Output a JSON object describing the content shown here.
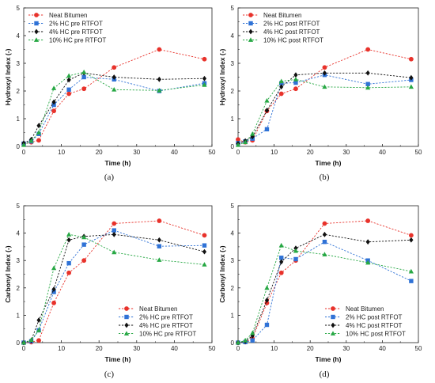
{
  "chart_data": [
    {
      "type": "line",
      "caption": "(a)",
      "xlabel": "Time (h)",
      "ylabel": "Hydroxyl Index (-)",
      "xlim": [
        0,
        50
      ],
      "ylim": [
        0,
        5
      ],
      "xticks": [
        "0",
        "10",
        "20",
        "30",
        "40",
        "50"
      ],
      "yticks": [
        "0",
        "1",
        "2",
        "3",
        "4",
        "5"
      ],
      "legend_position": "top-left",
      "series": [
        {
          "name": "Neat Bitumen",
          "color": "#e8322b",
          "marker": "circle",
          "x": [
            0,
            2,
            4,
            8,
            12,
            16,
            24,
            36,
            48
          ],
          "y": [
            0.08,
            0.15,
            0.22,
            1.28,
            1.9,
            2.08,
            2.85,
            3.5,
            3.15
          ]
        },
        {
          "name": "2% HC pre RTFOT",
          "color": "#2f72d6",
          "marker": "square",
          "x": [
            0,
            2,
            4,
            8,
            12,
            16,
            24,
            36,
            48
          ],
          "y": [
            0.1,
            0.18,
            0.45,
            1.5,
            2.05,
            2.5,
            2.42,
            2.0,
            2.28
          ]
        },
        {
          "name": "4% HC pre RTFOT",
          "color": "#111111",
          "marker": "diamond",
          "x": [
            0,
            2,
            4,
            8,
            12,
            16,
            24,
            36,
            48
          ],
          "y": [
            0.12,
            0.25,
            0.75,
            1.6,
            2.4,
            2.65,
            2.5,
            2.42,
            2.45
          ]
        },
        {
          "name": "10% HC pre RTFOT",
          "color": "#27a844",
          "marker": "triangle",
          "x": [
            0,
            2,
            4,
            8,
            12,
            16,
            24,
            36,
            48
          ],
          "y": [
            0.05,
            0.2,
            0.5,
            2.1,
            2.55,
            2.68,
            2.05,
            2.02,
            2.22
          ]
        }
      ]
    },
    {
      "type": "line",
      "caption": "(b)",
      "xlabel": "Time (h)",
      "ylabel": "Hydroxyl Index (-)",
      "xlim": [
        0,
        50
      ],
      "ylim": [
        0,
        5
      ],
      "xticks": [
        "0",
        "10",
        "20",
        "30",
        "40",
        "50"
      ],
      "yticks": [
        "0",
        "1",
        "2",
        "3",
        "4",
        "5"
      ],
      "legend_position": "top-left",
      "series": [
        {
          "name": "Neat Bitumen",
          "color": "#e8322b",
          "marker": "circle",
          "x": [
            0,
            2,
            4,
            8,
            12,
            16,
            24,
            36,
            48
          ],
          "y": [
            0.25,
            0.15,
            0.22,
            1.28,
            1.9,
            2.08,
            2.85,
            3.5,
            3.15
          ]
        },
        {
          "name": "2% HC post RTFOT",
          "color": "#2f72d6",
          "marker": "square",
          "x": [
            0,
            2,
            4,
            8,
            12,
            16,
            24,
            36,
            48
          ],
          "y": [
            0.12,
            0.18,
            0.28,
            0.62,
            2.28,
            2.3,
            2.58,
            2.25,
            2.4
          ]
        },
        {
          "name": "4% HC post RTFOT",
          "color": "#111111",
          "marker": "diamond",
          "x": [
            0,
            2,
            4,
            8,
            12,
            16,
            24,
            36,
            48
          ],
          "y": [
            0.1,
            0.2,
            0.35,
            1.3,
            2.15,
            2.58,
            2.65,
            2.65,
            2.48
          ]
        },
        {
          "name": "10% HC post RTFOT",
          "color": "#27a844",
          "marker": "triangle",
          "x": [
            0,
            2,
            4,
            8,
            12,
            16,
            24,
            36,
            48
          ],
          "y": [
            0.05,
            0.15,
            0.45,
            1.65,
            2.35,
            2.42,
            2.15,
            2.12,
            2.15
          ]
        }
      ]
    },
    {
      "type": "line",
      "caption": "(c)",
      "xlabel": "Time (h)",
      "ylabel": "Carbonyl Index (-)",
      "xlim": [
        0,
        50
      ],
      "ylim": [
        0,
        5
      ],
      "xticks": [
        "0",
        "10",
        "20",
        "30",
        "40",
        "50"
      ],
      "yticks": [
        "0",
        "1",
        "2",
        "3",
        "4",
        "5"
      ],
      "legend_position": "bottom-right",
      "series": [
        {
          "name": "Neat Bitumen",
          "color": "#e8322b",
          "marker": "circle",
          "x": [
            0,
            2,
            4,
            8,
            12,
            16,
            24,
            36,
            48
          ],
          "y": [
            0.0,
            0.02,
            0.08,
            1.45,
            2.55,
            3.0,
            4.35,
            4.45,
            3.92
          ]
        },
        {
          "name": "2% HC pre RTFOT",
          "color": "#2f72d6",
          "marker": "square",
          "x": [
            0,
            2,
            4,
            8,
            12,
            16,
            24,
            36,
            48
          ],
          "y": [
            0.0,
            0.05,
            0.45,
            1.85,
            2.9,
            3.58,
            4.1,
            3.52,
            3.55
          ]
        },
        {
          "name": "4% HC pre RTFOT",
          "color": "#111111",
          "marker": "diamond",
          "x": [
            0,
            2,
            4,
            8,
            12,
            16,
            24,
            36,
            48
          ],
          "y": [
            0.0,
            0.08,
            0.82,
            1.95,
            3.75,
            3.88,
            3.95,
            3.75,
            3.32
          ]
        },
        {
          "name": "10% HC pre RTFOT",
          "color": "#27a844",
          "marker": "triangle",
          "x": [
            0,
            2,
            4,
            8,
            12,
            16,
            24,
            36,
            48
          ],
          "y": [
            0.0,
            0.1,
            0.45,
            2.72,
            3.95,
            3.85,
            3.3,
            3.02,
            2.85
          ]
        }
      ]
    },
    {
      "type": "line",
      "caption": "(d)",
      "xlabel": "Time (h)",
      "ylabel": "Carbonyl Index (-)",
      "xlim": [
        0,
        50
      ],
      "ylim": [
        0,
        5
      ],
      "xticks": [
        "0",
        "10",
        "20",
        "30",
        "40",
        "50"
      ],
      "yticks": [
        "0",
        "1",
        "2",
        "3",
        "4",
        "5"
      ],
      "legend_position": "bottom-right",
      "series": [
        {
          "name": "Neat Bitumen",
          "color": "#e8322b",
          "marker": "circle",
          "x": [
            0,
            2,
            4,
            8,
            12,
            16,
            24,
            36,
            48
          ],
          "y": [
            0.0,
            0.02,
            0.15,
            1.45,
            2.55,
            3.0,
            4.35,
            4.45,
            3.92
          ]
        },
        {
          "name": "2% HC post RTFOT",
          "color": "#2f72d6",
          "marker": "square",
          "x": [
            0,
            2,
            4,
            8,
            12,
            16,
            24,
            36,
            48
          ],
          "y": [
            0.0,
            0.02,
            0.08,
            0.65,
            3.1,
            3.05,
            3.68,
            3.0,
            2.25
          ]
        },
        {
          "name": "4% HC post RTFOT",
          "color": "#111111",
          "marker": "diamond",
          "x": [
            0,
            2,
            4,
            8,
            12,
            16,
            24,
            36,
            48
          ],
          "y": [
            0.0,
            0.05,
            0.25,
            1.55,
            2.95,
            3.45,
            3.95,
            3.68,
            3.75
          ]
        },
        {
          "name": "10% HC post RTFOT",
          "color": "#27a844",
          "marker": "triangle",
          "x": [
            0,
            2,
            4,
            8,
            12,
            16,
            24,
            36,
            48
          ],
          "y": [
            0.0,
            0.08,
            0.35,
            2.0,
            3.55,
            3.35,
            3.22,
            2.92,
            2.6
          ]
        }
      ]
    }
  ]
}
